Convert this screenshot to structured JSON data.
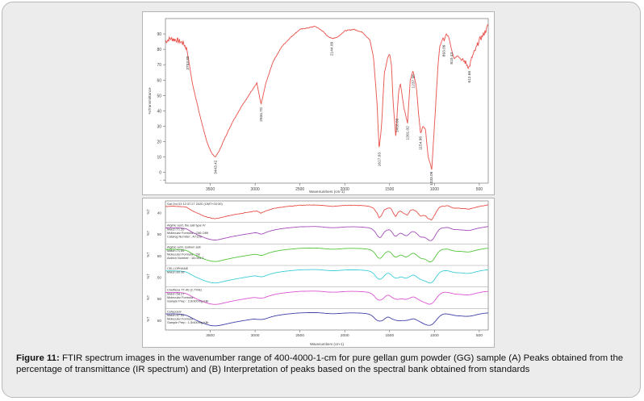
{
  "caption": {
    "label": "Figure 11:",
    "text": " FTIR spectrum images in the wavenumber range of 400-4000-1-cm for pure gellan gum powder (GG) sample (A) Peaks obtained from the percentage of transmittance (IR spectrum) and (B) Interpretation of peaks based on the spectral bank obtained from standards"
  },
  "chart_data": [
    {
      "type": "line",
      "title": "",
      "xlabel": "Wavenumbers (cm-1)",
      "ylabel": "%Transmittance",
      "x_reversed": true,
      "xlim": [
        4000,
        400
      ],
      "ylim": [
        -7,
        100
      ],
      "x_ticks": [
        "3500",
        "3000",
        "2500",
        "2000",
        "1500",
        "1000",
        "500"
      ],
      "y_ticks": [
        "90",
        "80",
        "70",
        "60",
        "50",
        "40",
        "30",
        "20",
        "10",
        "0",
        "-"
      ],
      "color": "#e8504a",
      "series": [
        {
          "x": [
            4000,
            3950,
            3870,
            3800,
            3760,
            3700,
            3620,
            3540,
            3480,
            3443,
            3400,
            3340,
            3250,
            3150,
            3050,
            2980,
            2934,
            2880,
            2800,
            2700,
            2600,
            2500,
            2400,
            2330,
            2250,
            2200,
            2144,
            2080,
            2000,
            1900,
            1800,
            1720,
            1680,
            1640,
            1617,
            1590,
            1560,
            1520,
            1500,
            1480,
            1460,
            1430,
            1416,
            1400,
            1380,
            1340,
            1300,
            1270,
            1250,
            1237,
            1200,
            1180,
            1154,
            1130,
            1100,
            1070,
            1030,
            990,
            960,
            940,
            900,
            893,
            870,
            840,
            810,
            780,
            740,
            700,
            660,
            613,
            580,
            540,
            500,
            460,
            420,
            400
          ],
          "y": [
            85,
            87,
            86,
            84,
            80,
            58,
            38,
            20,
            12,
            10,
            14,
            22,
            33,
            43,
            52,
            58,
            44,
            58,
            72,
            82,
            88,
            93,
            94,
            95,
            92,
            89,
            87,
            88,
            92,
            93,
            91,
            86,
            75,
            45,
            15,
            30,
            64,
            75,
            77,
            70,
            45,
            22,
            38,
            52,
            58,
            42,
            32,
            60,
            64,
            66,
            55,
            40,
            25,
            30,
            28,
            10,
            2,
            40,
            70,
            82,
            88,
            85,
            90,
            88,
            80,
            74,
            76,
            73,
            72,
            68,
            75,
            80,
            86,
            89,
            93,
            96
          ]
        }
      ],
      "annotations": [
        "3753.89",
        "3443.42",
        "2934.70",
        "2144.09",
        "1617.03",
        "1416.66",
        "1301.02",
        "1237.96",
        "1154.96",
        "1033.09",
        "893.09",
        "810.43",
        "612.66"
      ]
    },
    {
      "type": "line",
      "title": "",
      "xlabel": "Wavenumbers (cm-1)",
      "x_reversed": true,
      "xlim": [
        4000,
        400
      ],
      "x_ticks": [
        "3500",
        "3000",
        "2500",
        "2000",
        "1500",
        "1000",
        "500"
      ],
      "series": [
        {
          "color": "#e8504a",
          "y_tick": "40",
          "legend": [
            "Sat Oct 03 12:37:27 2020 (GMT+03:30)"
          ]
        },
        {
          "color": "#a34db8",
          "y_tick": "50",
          "legend": [
            "Alginic acid, the salt type IV",
            "Match:71.55",
            "Molecular Formula : C86 O89",
            "Catalog Number : A7128"
          ]
        },
        {
          "color": "#52c43a",
          "y_tick": "50",
          "legend": [
            "Alginic acid, sodium salt",
            "Match:71.65",
            "Molecular Formula : O8",
            "Aldrich Number : 18,094-7"
          ]
        },
        {
          "color": "#3ccdd8",
          "y_tick": "50",
          "legend": [
            "CELLOPHANE",
            "Match:60.96"
          ]
        },
        {
          "color": "#dc55d2",
          "y_tick": "50",
          "legend": [
            "Chelflexa TT-40 (2.7%N)",
            "Match:58.27",
            "Molecular Formula :",
            "Sample Prep : 2.6/300mg KBr"
          ]
        },
        {
          "color": "#4040a8",
          "y_tick": "50",
          "legend": [
            "Ceteposal",
            "Match:57.84",
            "Molecular Formula :",
            "Sample Prep : 1.5/400mg KBr"
          ]
        }
      ]
    }
  ]
}
